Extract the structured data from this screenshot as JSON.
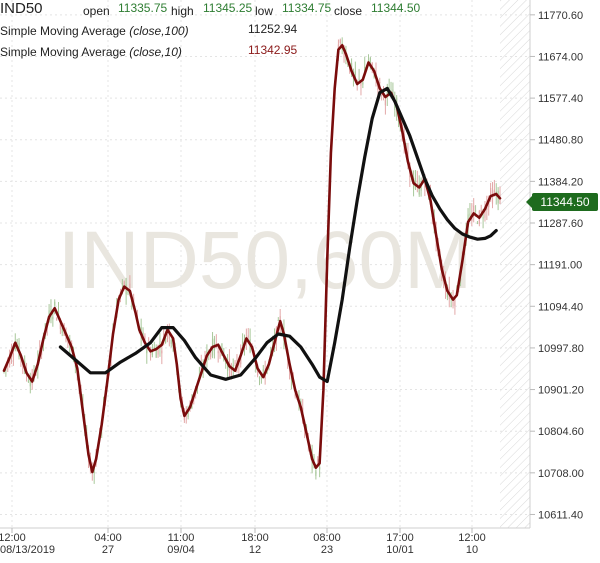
{
  "header": {
    "symbol": "IND50",
    "open_label": "open",
    "open_value": "11335.75",
    "high_label": "high",
    "high_value": "11345.25",
    "low_label": "low",
    "low_value": "11334.75",
    "close_label": "close",
    "close_value": "11344.50",
    "sma100_name": "Simple Moving Average",
    "sma100_params": "(close,100)",
    "sma100_value": "11252.94",
    "sma10_name": "Simple Moving Average",
    "sma10_params": "(close,10)",
    "sma10_value": "11342.95"
  },
  "watermark": "IND50,60M",
  "last_price_label": "11344.50",
  "colors": {
    "sma100": "#111111",
    "sma10": "#7a0c0c",
    "candle_up": "#a8c89a",
    "candle_down": "#e3a8a8",
    "last_price_bg": "#1e6b1e",
    "watermark": "#e9e6df",
    "grid": "#e4e4e4"
  },
  "chart_data": {
    "type": "line",
    "ylim": [
      10580,
      11805
    ],
    "y_ticks": [
      "11770.60",
      "11674.00",
      "11577.40",
      "11480.80",
      "11384.20",
      "11287.60",
      "11191.00",
      "11094.40",
      "10997.80",
      "10901.20",
      "10804.60",
      "10708.00",
      "10611.40"
    ],
    "x_ticks": [
      {
        "top": "12:00",
        "bottom": "08/13/2019"
      },
      {
        "top": "04:00",
        "bottom": "27"
      },
      {
        "top": "11:00",
        "bottom": "09/04"
      },
      {
        "top": "18:00",
        "bottom": "12"
      },
      {
        "top": "08:00",
        "bottom": "23"
      },
      {
        "top": "17:00",
        "bottom": "10/01"
      },
      {
        "top": "12:00",
        "bottom": "10"
      }
    ],
    "x_count": 264,
    "series": [
      {
        "name": "Simple Moving Average (close,10)",
        "points": [
          [
            0,
            10945
          ],
          [
            3,
            10975
          ],
          [
            6,
            11010
          ],
          [
            9,
            10980
          ],
          [
            12,
            10940
          ],
          [
            15,
            10920
          ],
          [
            18,
            10960
          ],
          [
            21,
            11020
          ],
          [
            24,
            11070
          ],
          [
            27,
            11090
          ],
          [
            30,
            11060
          ],
          [
            33,
            11030
          ],
          [
            36,
            11000
          ],
          [
            39,
            10950
          ],
          [
            42,
            10850
          ],
          [
            45,
            10750
          ],
          [
            47,
            10710
          ],
          [
            49,
            10740
          ],
          [
            52,
            10820
          ],
          [
            55,
            10920
          ],
          [
            58,
            11030
          ],
          [
            61,
            11110
          ],
          [
            64,
            11140
          ],
          [
            67,
            11130
          ],
          [
            70,
            11080
          ],
          [
            72,
            11040
          ],
          [
            75,
            11010
          ],
          [
            78,
            10990
          ],
          [
            81,
            10995
          ],
          [
            84,
            11005
          ],
          [
            87,
            11040
          ],
          [
            90,
            11020
          ],
          [
            92,
            10960
          ],
          [
            94,
            10880
          ],
          [
            96,
            10840
          ],
          [
            99,
            10860
          ],
          [
            102,
            10900
          ],
          [
            105,
            10940
          ],
          [
            108,
            10980
          ],
          [
            111,
            11000
          ],
          [
            114,
            11005
          ],
          [
            117,
            10980
          ],
          [
            120,
            10955
          ],
          [
            123,
            10945
          ],
          [
            126,
            10980
          ],
          [
            129,
            11020
          ],
          [
            132,
            11000
          ],
          [
            135,
            10950
          ],
          [
            138,
            10930
          ],
          [
            141,
            10960
          ],
          [
            144,
            11010
          ],
          [
            147,
            11060
          ],
          [
            149,
            11030
          ],
          [
            152,
            10960
          ],
          [
            155,
            10900
          ],
          [
            158,
            10860
          ],
          [
            161,
            10800
          ],
          [
            164,
            10740
          ],
          [
            166,
            10720
          ],
          [
            168,
            10730
          ],
          [
            170,
            10900
          ],
          [
            172,
            11200
          ],
          [
            174,
            11450
          ],
          [
            176,
            11600
          ],
          [
            178,
            11690
          ],
          [
            180,
            11700
          ],
          [
            182,
            11680
          ],
          [
            185,
            11640
          ],
          [
            188,
            11610
          ],
          [
            191,
            11620
          ],
          [
            194,
            11660
          ],
          [
            197,
            11640
          ],
          [
            200,
            11600
          ],
          [
            203,
            11580
          ],
          [
            206,
            11590
          ],
          [
            209,
            11560
          ],
          [
            212,
            11500
          ],
          [
            215,
            11430
          ],
          [
            218,
            11380
          ],
          [
            221,
            11370
          ],
          [
            224,
            11390
          ],
          [
            227,
            11340
          ],
          [
            230,
            11260
          ],
          [
            233,
            11180
          ],
          [
            236,
            11130
          ],
          [
            239,
            11110
          ],
          [
            241,
            11120
          ],
          [
            244,
            11200
          ],
          [
            247,
            11290
          ],
          [
            250,
            11310
          ],
          [
            253,
            11300
          ],
          [
            256,
            11320
          ],
          [
            259,
            11350
          ],
          [
            262,
            11355
          ],
          [
            264,
            11345
          ]
        ]
      },
      {
        "name": "Simple Moving Average (close,100)",
        "points": [
          [
            30,
            11000
          ],
          [
            38,
            10970
          ],
          [
            46,
            10940
          ],
          [
            54,
            10940
          ],
          [
            62,
            10965
          ],
          [
            70,
            10985
          ],
          [
            78,
            11010
          ],
          [
            84,
            11045
          ],
          [
            90,
            11045
          ],
          [
            96,
            11015
          ],
          [
            102,
            10975
          ],
          [
            110,
            10935
          ],
          [
            118,
            10925
          ],
          [
            126,
            10935
          ],
          [
            134,
            10975
          ],
          [
            140,
            11010
          ],
          [
            146,
            11030
          ],
          [
            152,
            11025
          ],
          [
            158,
            11000
          ],
          [
            164,
            10960
          ],
          [
            168,
            10930
          ],
          [
            172,
            10920
          ],
          [
            176,
            11010
          ],
          [
            180,
            11110
          ],
          [
            184,
            11230
          ],
          [
            188,
            11340
          ],
          [
            192,
            11440
          ],
          [
            196,
            11530
          ],
          [
            200,
            11590
          ],
          [
            204,
            11600
          ],
          [
            208,
            11570
          ],
          [
            212,
            11530
          ],
          [
            216,
            11490
          ],
          [
            220,
            11440
          ],
          [
            224,
            11390
          ],
          [
            228,
            11350
          ],
          [
            232,
            11320
          ],
          [
            236,
            11295
          ],
          [
            240,
            11275
          ],
          [
            244,
            11262
          ],
          [
            248,
            11255
          ],
          [
            252,
            11250
          ],
          [
            256,
            11252
          ],
          [
            259,
            11258
          ],
          [
            262,
            11270
          ]
        ]
      }
    ]
  }
}
